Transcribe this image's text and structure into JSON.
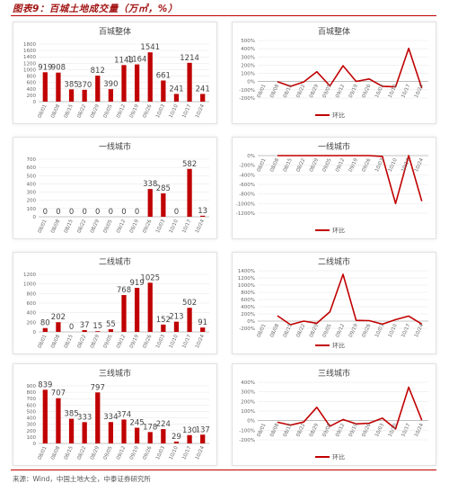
{
  "figure": {
    "title": "图表9：百城土地成交量（万㎡，%）",
    "source": "来源：Wind，中国土地大全，中泰证券研究所"
  },
  "colors": {
    "accent": "#c00000",
    "grid": "#e6e6e6",
    "axis": "#999999"
  },
  "chart_data": [
    {
      "type": "bar",
      "title": "百城整体",
      "categories": [
        "08/01",
        "08/08",
        "08/15",
        "08/22",
        "08/29",
        "09/05",
        "09/12",
        "09/19",
        "09/26",
        "10/03",
        "10/10",
        "10/17",
        "10/24"
      ],
      "values": [
        919,
        908,
        385,
        370,
        812,
        390,
        1143,
        1164,
        1541,
        661,
        241,
        1214,
        241
      ],
      "ylim": [
        0,
        1800
      ],
      "yticks": [
        0,
        200,
        400,
        600,
        800,
        1000,
        1200,
        1400,
        1600,
        1800
      ]
    },
    {
      "type": "line",
      "title": "百城整体",
      "legend": "环比",
      "categories": [
        "08/01",
        "08/08",
        "08/15",
        "08/22",
        "08/29",
        "09/05",
        "09/12",
        "09/19",
        "09/26",
        "10/03",
        "10/10",
        "10/17",
        "10/24"
      ],
      "values": [
        null,
        0,
        -58,
        -4,
        120,
        -52,
        193,
        2,
        32,
        -57,
        -64,
        404,
        -80
      ],
      "ylim": [
        -200,
        500
      ],
      "yticks": [
        -200,
        -100,
        0,
        100,
        200,
        300,
        400,
        500
      ],
      "tick_suffix": "%"
    },
    {
      "type": "bar",
      "title": "一线城市",
      "categories": [
        "08/01",
        "08/08",
        "08/15",
        "08/22",
        "08/29",
        "09/05",
        "09/12",
        "09/19",
        "09/26",
        "10/03",
        "10/10",
        "10/17",
        "10/24"
      ],
      "values": [
        0,
        0,
        0,
        0,
        0,
        0,
        0,
        0,
        338,
        285,
        0,
        582,
        13
      ],
      "ylim": [
        0,
        700
      ],
      "yticks": [
        0,
        100,
        200,
        300,
        400,
        500,
        600,
        700
      ]
    },
    {
      "type": "line",
      "title": "一线城市",
      "legend": "环比",
      "categories": [
        "08/01",
        "08/08",
        "08/15",
        "08/22",
        "08/29",
        "09/05",
        "09/12",
        "09/19",
        "09/26",
        "10/03",
        "10/10",
        "10/17",
        "10/24"
      ],
      "values": [
        null,
        0,
        0,
        0,
        0,
        0,
        0,
        0,
        0,
        -16,
        -1000,
        0,
        -950
      ],
      "ylim": [
        -1200,
        0
      ],
      "yticks": [
        -1200,
        -1000,
        -800,
        -600,
        -400,
        -200,
        0
      ],
      "tick_suffix": "%"
    },
    {
      "type": "bar",
      "title": "二线城市",
      "categories": [
        "08/01",
        "08/08",
        "08/15",
        "08/22",
        "08/29",
        "09/05",
        "09/12",
        "09/19",
        "09/26",
        "10/03",
        "10/10",
        "10/17",
        "10/24"
      ],
      "values": [
        80,
        202,
        0,
        37,
        15,
        55,
        768,
        919,
        1025,
        152,
        213,
        502,
        91
      ],
      "ylim": [
        0,
        1200
      ],
      "yticks": [
        0,
        200,
        400,
        600,
        800,
        1000,
        1200
      ]
    },
    {
      "type": "line",
      "title": "二线城市",
      "legend": "环比",
      "categories": [
        "08/01",
        "08/08",
        "08/15",
        "08/22",
        "08/29",
        "09/05",
        "09/12",
        "09/19",
        "09/26",
        "10/03",
        "10/10",
        "10/17",
        "10/24"
      ],
      "values": [
        null,
        150,
        -100,
        0,
        -60,
        260,
        1300,
        20,
        12,
        -85,
        40,
        140,
        -82
      ],
      "ylim": [
        -200,
        1400
      ],
      "yticks": [
        -200,
        0,
        200,
        400,
        600,
        800,
        1000,
        1200,
        1400
      ],
      "tick_suffix": "%"
    },
    {
      "type": "bar",
      "title": "三线城市",
      "categories": [
        "08/01",
        "08/08",
        "08/15",
        "08/22",
        "08/29",
        "09/05",
        "09/12",
        "09/19",
        "09/26",
        "10/03",
        "10/10",
        "10/17",
        "10/24"
      ],
      "values": [
        839,
        707,
        385,
        333,
        797,
        334,
        374,
        245,
        178,
        224,
        29,
        130,
        137
      ],
      "ylim": [
        0,
        900
      ],
      "yticks": [
        0,
        100,
        200,
        300,
        400,
        500,
        600,
        700,
        800,
        900
      ]
    },
    {
      "type": "line",
      "title": "三线城市",
      "legend": "环比",
      "categories": [
        "08/01",
        "08/08",
        "08/15",
        "08/22",
        "08/29",
        "09/05",
        "09/12",
        "09/19",
        "09/26",
        "10/03",
        "10/10",
        "10/17",
        "10/24"
      ],
      "values": [
        null,
        -16,
        -46,
        -14,
        139,
        -58,
        12,
        -34,
        -27,
        26,
        -87,
        348,
        5
      ],
      "ylim": [
        -200,
        400
      ],
      "yticks": [
        -200,
        -100,
        0,
        100,
        200,
        300,
        400
      ],
      "tick_suffix": "%"
    }
  ]
}
